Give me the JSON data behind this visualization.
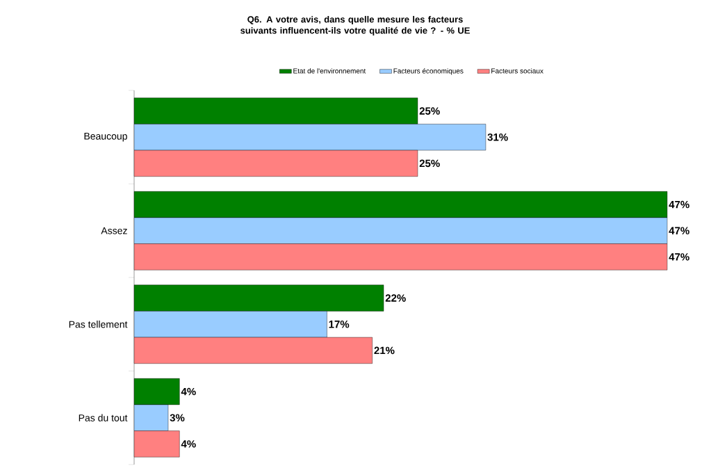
{
  "chart_data": {
    "type": "bar",
    "orientation": "horizontal",
    "title": "Q6. A votre avis, dans quelle mesure les facteurs suivants influencent-ils votre qualité de vie ? - % UE",
    "categories": [
      "Beaucoup",
      "Assez",
      "Pas tellement",
      "Pas du tout"
    ],
    "series": [
      {
        "name": "Etat de l'environnement",
        "color": "#008000",
        "values": [
          25,
          47,
          22,
          4
        ],
        "value_labels": [
          "25%",
          "47%",
          "22%",
          "4%"
        ]
      },
      {
        "name": "Facteurs économiques",
        "color": "#99ccff",
        "values": [
          31,
          47,
          17,
          3
        ],
        "value_labels": [
          "31%",
          "47%",
          "17%",
          "3%"
        ]
      },
      {
        "name": "Facteurs sociaux",
        "color": "#ff8080",
        "values": [
          25,
          47,
          21,
          4
        ],
        "value_labels": [
          "25%",
          "47%",
          "21%",
          "4%"
        ]
      }
    ],
    "legend": "top"
  }
}
